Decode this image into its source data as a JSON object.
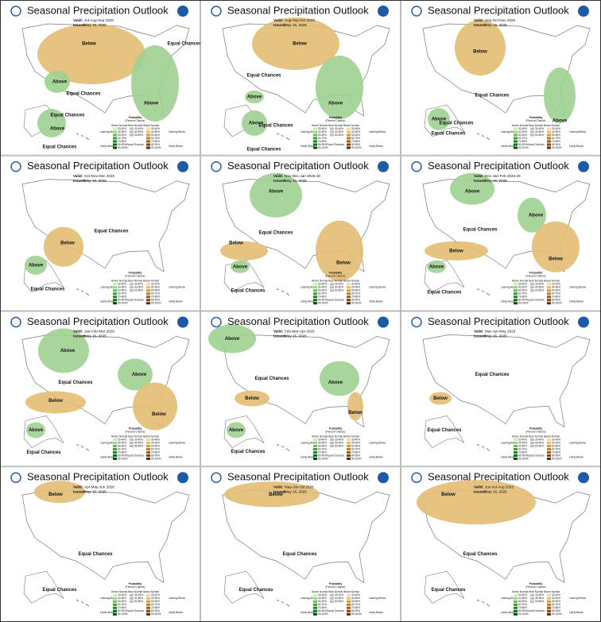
{
  "panels": [
    {
      "title": "Seasonal Precipitation Outlook",
      "valid_label": "Valid:",
      "valid": "Jul-Aug-Sep 2025",
      "issued_label": "Issued:",
      "issued": "May 15, 2025",
      "regions": [
        "Below",
        "Above",
        "Equal Chances",
        "Equal Chances",
        "Above",
        "Equal Chances",
        "Above",
        "Equal Chances"
      ]
    },
    {
      "title": "Seasonal Precipitation Outlook",
      "valid_label": "Valid:",
      "valid": "Aug-Sep-Oct 2025",
      "issued_label": "Issued:",
      "issued": "May 15, 2025",
      "regions": [
        "Below",
        "Equal Chances",
        "Above",
        "Above",
        "Equal Chances",
        "Above",
        "Equal Chances"
      ]
    },
    {
      "title": "Seasonal Precipitation Outlook",
      "valid_label": "Valid:",
      "valid": "Sep-Oct-Nov 2025",
      "issued_label": "Issued:",
      "issued": "May 15, 2025",
      "regions": [
        "Below",
        "Equal Chances",
        "Above",
        "Equal Chances",
        "Above",
        "Equal Chances"
      ]
    },
    {
      "title": "Seasonal Precipitation Outlook",
      "valid_label": "Valid:",
      "valid": "Oct-Nov-Dec 2025",
      "issued_label": "Issued:",
      "issued": "May 15, 2025",
      "regions": [
        "Equal Chances",
        "Below",
        "Above",
        "Equal Chances"
      ]
    },
    {
      "title": "Seasonal Precipitation Outlook",
      "valid_label": "Valid:",
      "valid": "Nov-Dec-Jan 2025-26",
      "issued_label": "Issued:",
      "issued": "May 15, 2025",
      "regions": [
        "Above",
        "Equal Chances",
        "Below",
        "Above",
        "Below",
        "Equal Chances"
      ]
    },
    {
      "title": "Seasonal Precipitation Outlook",
      "valid_label": "Valid:",
      "valid": "Dec-Jan-Feb 2025-26",
      "issued_label": "Issued:",
      "issued": "May 15, 2025",
      "regions": [
        "Above",
        "Above",
        "Equal Chances",
        "Below",
        "Below",
        "Above",
        "Equal Chances"
      ]
    },
    {
      "title": "Seasonal Precipitation Outlook",
      "valid_label": "Valid:",
      "valid": "Jan-Feb-Mar 2026",
      "issued_label": "Issued:",
      "issued": "May 15, 2025",
      "regions": [
        "Above",
        "Above",
        "Equal Chances",
        "Below",
        "Below",
        "Above",
        "Equal Chances"
      ]
    },
    {
      "title": "Seasonal Precipitation Outlook",
      "valid_label": "Valid:",
      "valid": "Feb-Mar-Apr 2026",
      "issued_label": "Issued:",
      "issued": "May 15, 2025",
      "regions": [
        "Above",
        "Equal Chances",
        "Above",
        "Below",
        "Below",
        "Above",
        "Equal Chances"
      ]
    },
    {
      "title": "Seasonal Precipitation Outlook",
      "valid_label": "Valid:",
      "valid": "Mar-Apr-May 2026",
      "issued_label": "Issued:",
      "issued": "May 15, 2025",
      "regions": [
        "Equal Chances",
        "Below",
        "Equal Chances"
      ]
    },
    {
      "title": "Seasonal Precipitation Outlook",
      "valid_label": "Valid:",
      "valid": "Apr-May-Jun 2026",
      "issued_label": "Issued:",
      "issued": "May 15, 2025",
      "regions": [
        "Below",
        "Equal Chances",
        "Equal Chances"
      ]
    },
    {
      "title": "Seasonal Precipitation Outlook",
      "valid_label": "Valid:",
      "valid": "May-Jun-Jul 2026",
      "issued_label": "Issued:",
      "issued": "May 15, 2025",
      "regions": [
        "Below",
        "Equal Chances",
        "Equal Chances"
      ]
    },
    {
      "title": "Seasonal Precipitation Outlook",
      "valid_label": "Valid:",
      "valid": "Jun-Jul-Aug 2026",
      "issued_label": "Issued:",
      "issued": "May 15, 2025",
      "regions": [
        "Below",
        "Equal Chances",
        "Equal Chances"
      ]
    }
  ],
  "legend": {
    "title": "Probability",
    "subtitle": "(Percent Chance)",
    "columns": [
      "Above Normal",
      "Near Normal",
      "Below Normal"
    ],
    "left": [
      "Leaning Above",
      "Likely Above"
    ],
    "right": [
      "Leaning Below",
      "Likely Below"
    ],
    "middle": "Equal Chances",
    "ranges": [
      "33-40%",
      "40-50%",
      "50-60%",
      "60-70%",
      "70-80%",
      "80-90%",
      "90-100%"
    ]
  }
}
